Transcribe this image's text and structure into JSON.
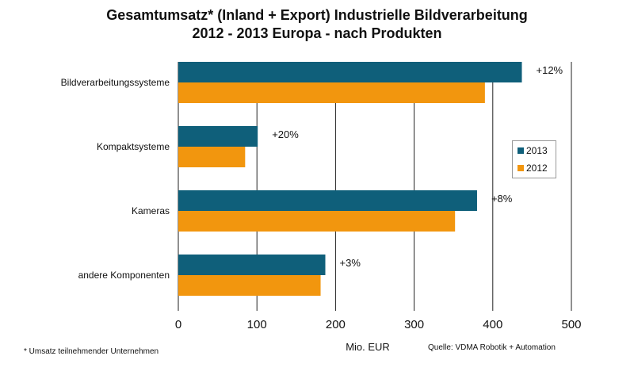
{
  "chart_data": {
    "type": "bar",
    "orientation": "horizontal",
    "title": "Gesamtumsatz* (Inland + Export) Industrielle Bildverarbeitung",
    "subtitle": "2012 - 2013 Europa - nach Produkten",
    "categories": [
      "Bildverarbeitungssysteme",
      "Kompaktsysteme",
      "Kameras",
      "andere Komponenten"
    ],
    "series": [
      {
        "name": "2013",
        "color": "#0f5f7a",
        "values": [
          437,
          101,
          380,
          187
        ]
      },
      {
        "name": "2012",
        "color": "#f2960e",
        "values": [
          390,
          85,
          352,
          181
        ]
      }
    ],
    "annotations": [
      "+12%",
      "+20%",
      "+8%",
      "+3%"
    ],
    "xlabel": "Mio. EUR",
    "ylabel": "",
    "xlim": [
      0,
      500
    ],
    "xticks": [
      "0",
      "100",
      "200",
      "300",
      "400",
      "500"
    ],
    "grid": true,
    "legend_position": "right"
  },
  "footnote": "* Umsatz teilnehmender Unternehmen",
  "source": "Quelle: VDMA Robotik + Automation"
}
